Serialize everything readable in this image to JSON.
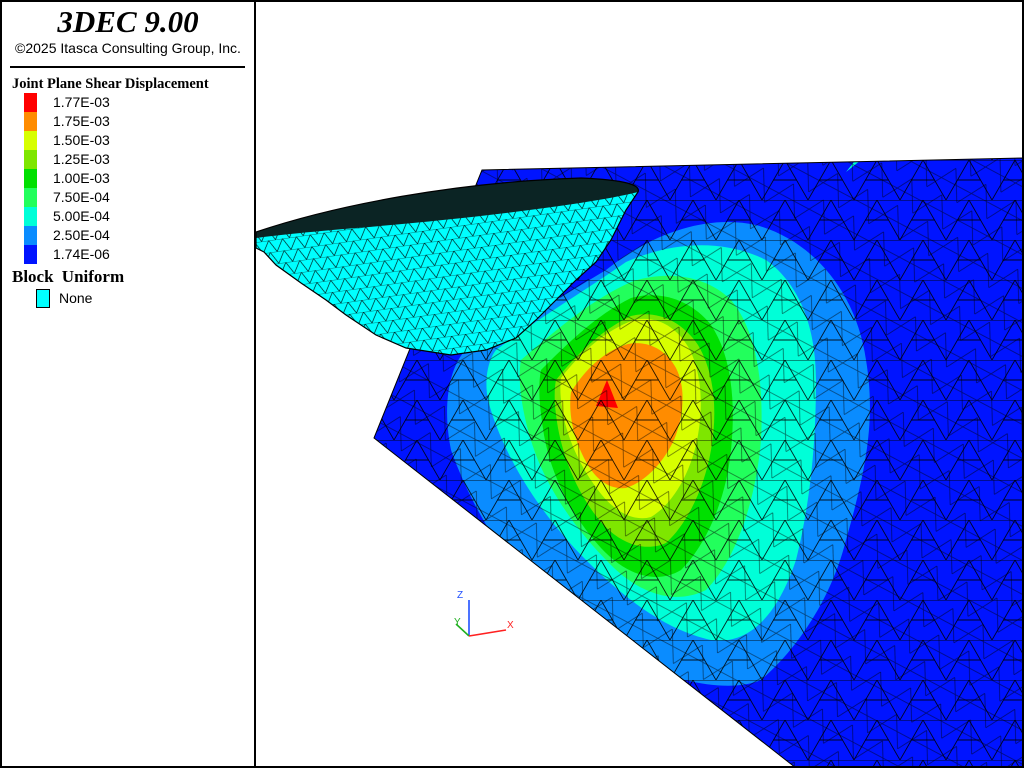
{
  "app": {
    "title": "3DEC 9.00",
    "copyright": "©2025 Itasca Consulting Group, Inc."
  },
  "legend": {
    "title": "Joint Plane Shear Displacement",
    "entries": [
      {
        "label": "1.77E-03",
        "color": "#ff0000"
      },
      {
        "label": "1.75E-03",
        "color": "#ff8c00"
      },
      {
        "label": "1.50E-03",
        "color": "#d7ff00"
      },
      {
        "label": "1.25E-03",
        "color": "#7ee600"
      },
      {
        "label": "1.00E-03",
        "color": "#00e000"
      },
      {
        "label": "7.50E-04",
        "color": "#22ff5c"
      },
      {
        "label": "5.00E-04",
        "color": "#00ffd8"
      },
      {
        "label": "2.50E-04",
        "color": "#0a8cff"
      },
      {
        "label": "1.74E-06",
        "color": "#0014ff"
      }
    ]
  },
  "block_legend": {
    "title": "Block  Uniform",
    "entry": {
      "label": "None",
      "color": "#00ffff"
    }
  },
  "axes": {
    "z": "Z",
    "y": "Y",
    "x": "X",
    "colors": {
      "z": "#2050ff",
      "y": "#20b020",
      "x": "#ff2020"
    }
  }
}
